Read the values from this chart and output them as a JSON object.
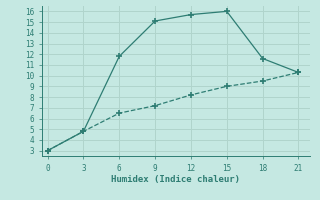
{
  "xlabel": "Humidex (Indice chaleur)",
  "line1_x": [
    0,
    3,
    6,
    9,
    12,
    15,
    18,
    21
  ],
  "line1_y": [
    3.0,
    4.8,
    6.5,
    7.2,
    8.2,
    9.0,
    9.5,
    10.3
  ],
  "line2_x": [
    0,
    3,
    6,
    9,
    12,
    15,
    18,
    21
  ],
  "line2_y": [
    3.0,
    4.8,
    11.8,
    15.1,
    15.7,
    16.0,
    11.6,
    10.3
  ],
  "color": "#2e7d73",
  "bg_color": "#c5e8e2",
  "grid_color": "#b0d4cc",
  "xlim": [
    -0.5,
    22
  ],
  "ylim": [
    2.5,
    16.5
  ],
  "xticks": [
    0,
    3,
    6,
    9,
    12,
    15,
    18,
    21
  ],
  "yticks": [
    3,
    4,
    5,
    6,
    7,
    8,
    9,
    10,
    11,
    12,
    13,
    14,
    15,
    16
  ],
  "marker": "+",
  "markersize": 5,
  "markeredgewidth": 1.2,
  "linewidth": 0.9,
  "line1_style": "--",
  "line2_style": "-"
}
